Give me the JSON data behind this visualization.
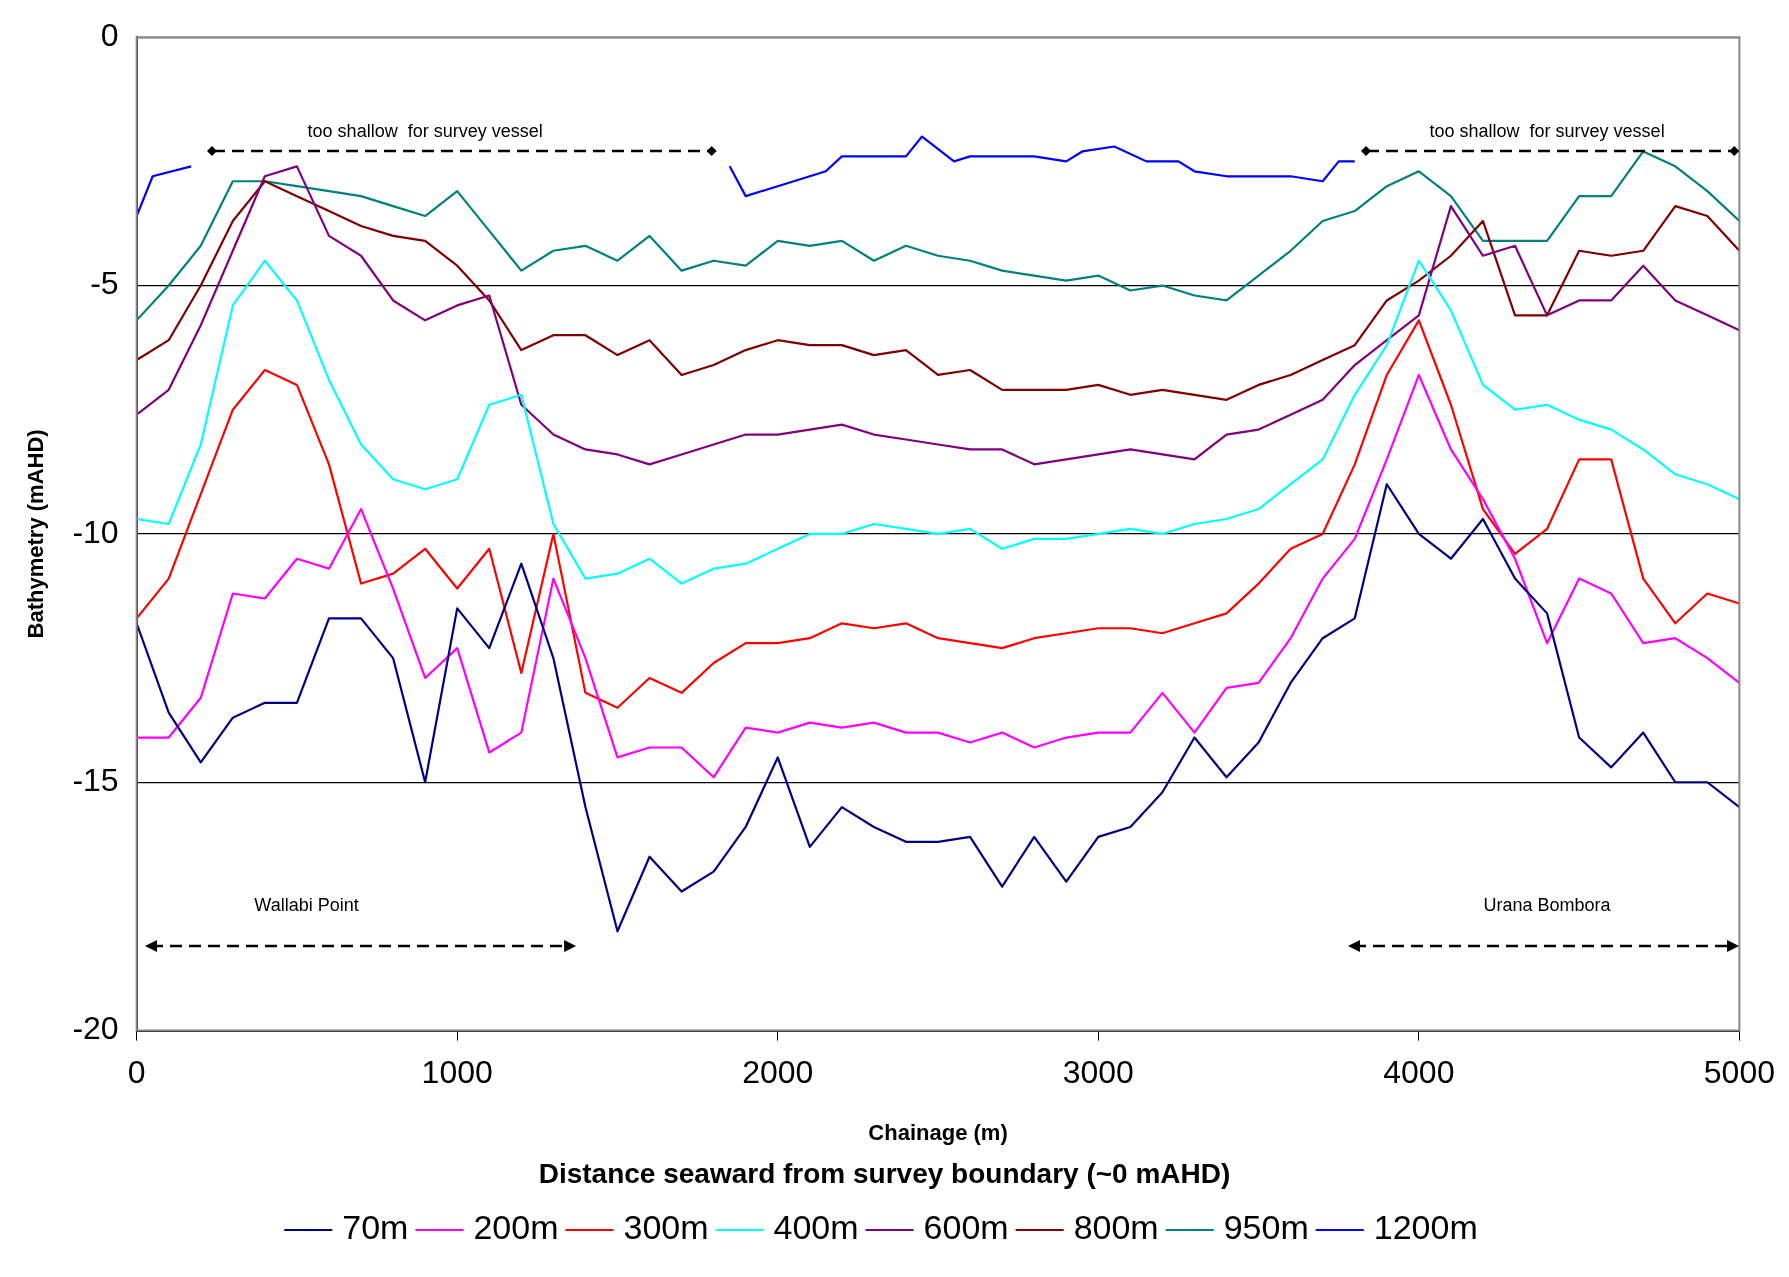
{
  "chart_data": {
    "type": "line",
    "xlabel": "Chainage (m)",
    "ylabel": "Bathymetry (mAHD)",
    "legend_title": "Distance seaward from survey boundary (~0 mAHD)",
    "legend": "bottom",
    "grid": "y",
    "marker": "none",
    "line_style": "solid",
    "xlim": [
      0,
      5000
    ],
    "xticks": [
      0,
      1000,
      2000,
      3000,
      4000,
      5000
    ],
    "ylim": [
      -20,
      0
    ],
    "yticks": [
      -20,
      -15,
      -10,
      -5,
      0
    ],
    "x": [
      0,
      100,
      200,
      300,
      400,
      500,
      600,
      700,
      800,
      900,
      1000,
      1100,
      1200,
      1300,
      1400,
      1500,
      1600,
      1700,
      1800,
      1900,
      2000,
      2100,
      2200,
      2300,
      2400,
      2500,
      2600,
      2700,
      2800,
      2900,
      3000,
      3100,
      3200,
      3300,
      3400,
      3500,
      3600,
      3700,
      3800,
      3900,
      4000,
      4100,
      4200,
      4300,
      4400,
      4500,
      4600,
      4700,
      4800,
      4900,
      5000
    ],
    "annotations": [
      "too shallow  for survey vessel",
      "too shallow  for survey vessel",
      "Wallabi Point",
      "Urana Bombora"
    ],
    "series": [
      {
        "name": "70m",
        "color": "#000080",
        "values": [
          -11.8,
          -13.6,
          -14.6,
          -13.7,
          -13.4,
          -13.4,
          -11.7,
          -11.7,
          -12.5,
          -15.0,
          -11.5,
          -12.3,
          -10.6,
          -12.5,
          -15.5,
          -18.0,
          -16.5,
          -17.2,
          -16.8,
          -15.9,
          -14.5,
          -16.3,
          -15.5,
          -15.9,
          -16.2,
          -16.2,
          -16.1,
          -17.1,
          -16.1,
          -17.0,
          -16.1,
          -15.9,
          -15.2,
          -14.1,
          -14.9,
          -14.2,
          -13.0,
          -12.1,
          -11.7,
          -9.0,
          -10.0,
          -10.5,
          -9.7,
          -10.9,
          -11.6,
          -14.1,
          -14.7,
          -14.0,
          -15.0,
          -15.0,
          -15.5
        ]
      },
      {
        "name": "200m",
        "color": "#ff00ff",
        "values": [
          -14.1,
          -14.1,
          -13.3,
          -11.2,
          -11.3,
          -10.5,
          -10.7,
          -9.5,
          -11.1,
          -12.9,
          -12.3,
          -14.4,
          -14.0,
          -10.9,
          -12.5,
          -14.5,
          -14.3,
          -14.3,
          -14.9,
          -13.9,
          -14.0,
          -13.8,
          -13.9,
          -13.8,
          -14.0,
          -14.0,
          -14.2,
          -14.0,
          -14.3,
          -14.1,
          -14.0,
          -14.0,
          -13.2,
          -14.0,
          -13.1,
          -13.0,
          -12.1,
          -10.9,
          -10.1,
          -8.5,
          -6.8,
          -8.3,
          -9.3,
          -10.5,
          -12.2,
          -10.9,
          -11.2,
          -12.2,
          -12.1,
          -12.5,
          -13.0
        ]
      },
      {
        "name": "300m",
        "color": "#ff0000",
        "values": [
          -11.7,
          -10.9,
          -9.2,
          -7.5,
          -6.7,
          -7.0,
          -8.6,
          -11.0,
          -10.8,
          -10.3,
          -11.1,
          -10.3,
          -12.8,
          -10.0,
          -13.2,
          -13.5,
          -12.9,
          -13.2,
          -12.6,
          -12.2,
          -12.2,
          -12.1,
          -11.8,
          -11.9,
          -11.8,
          -12.1,
          -12.2,
          -12.3,
          -12.1,
          -12.0,
          -11.9,
          -11.9,
          -12.0,
          -11.8,
          -11.6,
          -11.0,
          -10.3,
          -10.0,
          -8.6,
          -6.8,
          -5.7,
          -7.4,
          -9.5,
          -10.4,
          -9.9,
          -8.5,
          -8.5,
          -10.9,
          -11.8,
          -11.2,
          -11.4
        ]
      },
      {
        "name": "400m",
        "color": "#00ffff",
        "values": [
          -9.7,
          -9.8,
          -8.2,
          -5.4,
          -4.5,
          -5.3,
          -6.9,
          -8.2,
          -8.9,
          -9.1,
          -8.9,
          -7.4,
          -7.2,
          -9.8,
          -10.9,
          -10.8,
          -10.5,
          -11.0,
          -10.7,
          -10.6,
          -10.3,
          -10.0,
          -10.0,
          -9.8,
          -9.9,
          -10.0,
          -9.9,
          -10.3,
          -10.1,
          -10.1,
          -10.0,
          -9.9,
          -10.0,
          -9.8,
          -9.7,
          -9.5,
          -9.0,
          -8.5,
          -7.2,
          -6.2,
          -4.5,
          -5.5,
          -7.0,
          -7.5,
          -7.4,
          -7.7,
          -7.9,
          -8.3,
          -8.8,
          -9.0,
          -9.3
        ]
      },
      {
        "name": "600m",
        "color": "#800080",
        "values": [
          -7.6,
          -7.1,
          -5.8,
          -4.3,
          -2.8,
          -2.6,
          -4.0,
          -4.4,
          -5.3,
          -5.7,
          -5.4,
          -5.2,
          -7.4,
          -8.0,
          -8.3,
          -8.4,
          -8.6,
          -8.4,
          -8.2,
          -8.0,
          -8.0,
          -7.9,
          -7.8,
          -8.0,
          -8.1,
          -8.2,
          -8.3,
          -8.3,
          -8.6,
          -8.5,
          -8.4,
          -8.3,
          -8.4,
          -8.5,
          -8.0,
          -7.9,
          -7.6,
          -7.3,
          -6.6,
          -6.1,
          -5.6,
          -3.4,
          -4.4,
          -4.2,
          -5.6,
          -5.3,
          -5.3,
          -4.6,
          -5.3,
          -5.6,
          -5.9
        ]
      },
      {
        "name": "800m",
        "color": "#800000",
        "values": [
          -6.5,
          -6.1,
          -5.0,
          -3.7,
          -2.9,
          -3.2,
          -3.5,
          -3.8,
          -4.0,
          -4.1,
          -4.6,
          -5.3,
          -6.3,
          -6.0,
          -6.0,
          -6.4,
          -6.1,
          -6.8,
          -6.6,
          -6.3,
          -6.1,
          -6.2,
          -6.2,
          -6.4,
          -6.3,
          -6.8,
          -6.7,
          -7.1,
          -7.1,
          -7.1,
          -7.0,
          -7.2,
          -7.1,
          -7.2,
          -7.3,
          -7.0,
          -6.8,
          -6.5,
          -6.2,
          -5.3,
          -4.9,
          -4.4,
          -3.7,
          -5.6,
          -5.6,
          -4.3,
          -4.4,
          -4.3,
          -3.4,
          -3.6,
          -4.3
        ]
      },
      {
        "name": "950m",
        "color": "#008080",
        "values": [
          -5.7,
          -5.0,
          -4.2,
          -2.9,
          -2.9,
          -3.0,
          -3.1,
          -3.2,
          -3.4,
          -3.6,
          -3.1,
          -3.9,
          -4.7,
          -4.3,
          -4.2,
          -4.5,
          -4.0,
          -4.7,
          -4.5,
          -4.6,
          -4.1,
          -4.2,
          -4.1,
          -4.5,
          -4.2,
          -4.4,
          -4.5,
          -4.7,
          -4.8,
          -4.9,
          -4.8,
          -5.1,
          -5.0,
          -5.2,
          -5.3,
          -4.8,
          -4.3,
          -3.7,
          -3.5,
          -3.0,
          -2.7,
          -3.2,
          -4.1,
          -4.1,
          -4.1,
          -3.2,
          -3.2,
          -2.3,
          -2.6,
          -3.1,
          -3.7
        ]
      },
      {
        "name": "1200m",
        "color": "#0000ff",
        "x": [
          0,
          50,
          170,
          1000,
          1850,
          1900,
          2000,
          2100,
          2150,
          2200,
          2300,
          2400,
          2450,
          2550,
          2600,
          2700,
          2800,
          2900,
          2950,
          3050,
          3150,
          3250,
          3300,
          3400,
          3500,
          3600,
          3700,
          3750,
          3800
        ],
        "values": [
          -3.6,
          -2.8,
          -2.6,
          null,
          -2.6,
          -3.2,
          -3.0,
          -2.8,
          -2.7,
          -2.4,
          -2.4,
          -2.4,
          -2.0,
          -2.5,
          -2.4,
          -2.4,
          -2.4,
          -2.5,
          -2.3,
          -2.2,
          -2.5,
          -2.5,
          -2.7,
          -2.8,
          -2.8,
          -2.8,
          -2.9,
          -2.5,
          -2.5
        ]
      }
    ]
  }
}
